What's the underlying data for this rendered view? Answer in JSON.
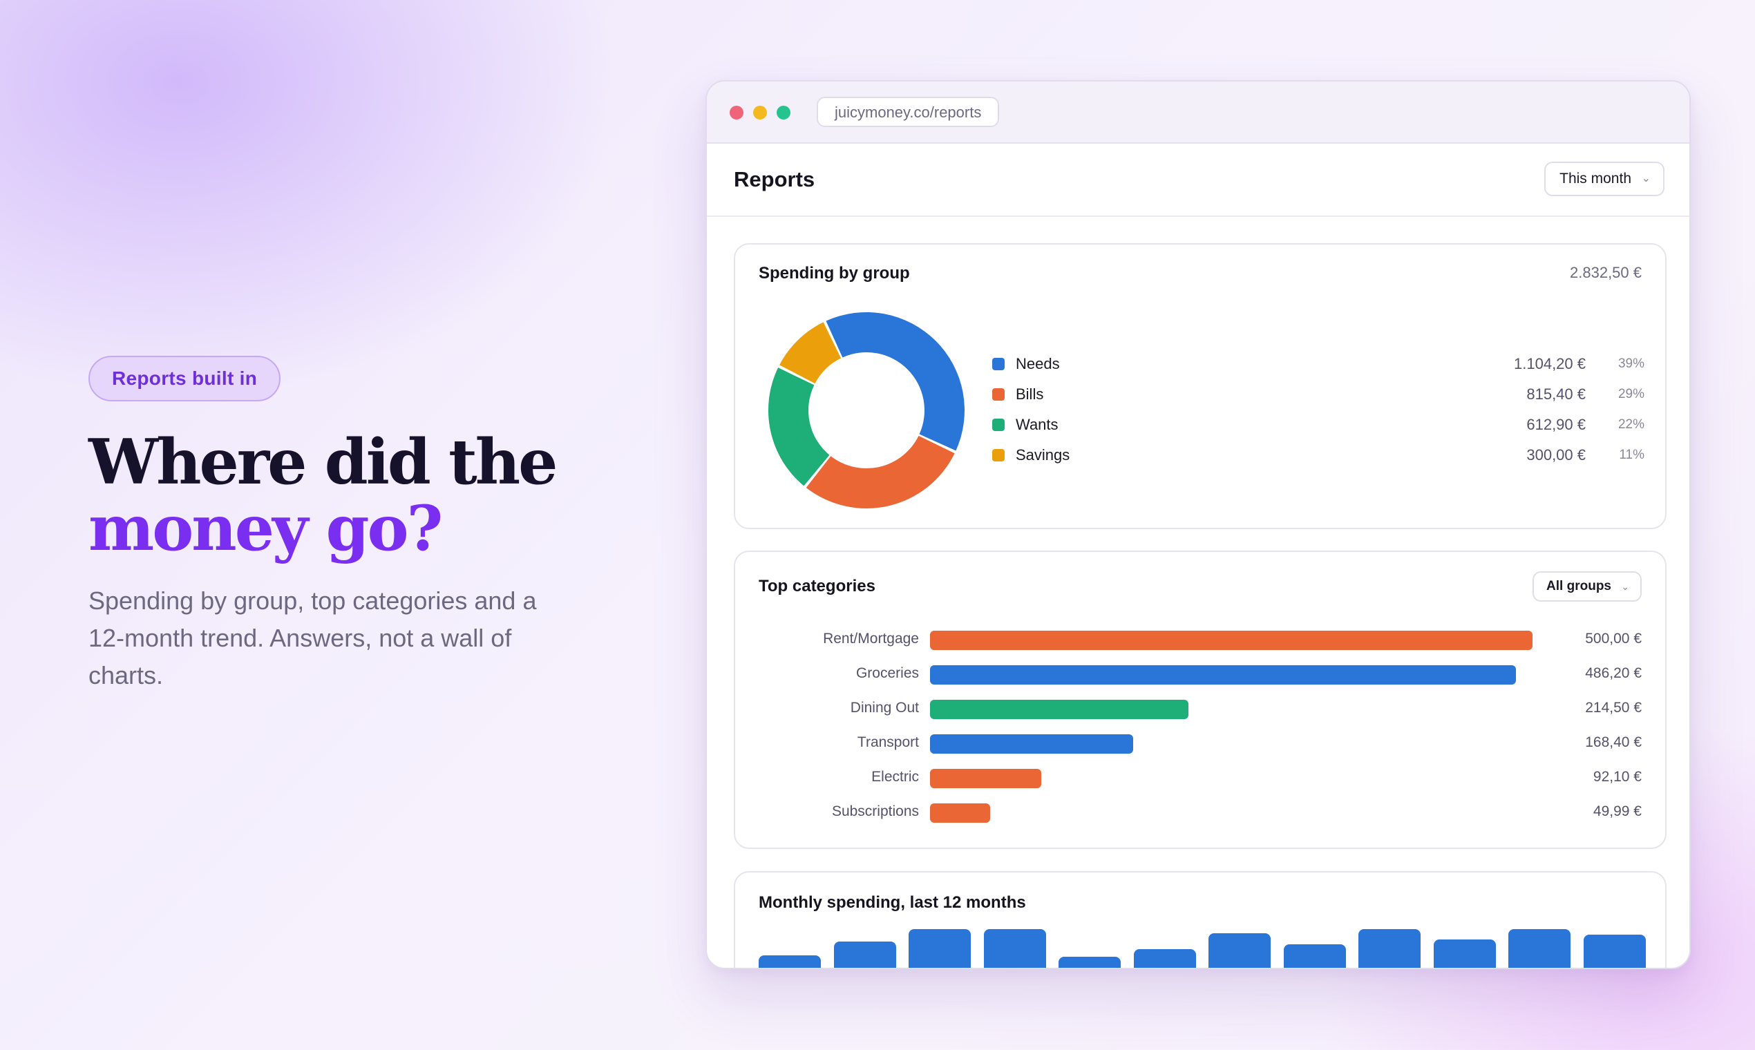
{
  "hero": {
    "badge": "Reports built in",
    "headline_line1": "Where did the",
    "headline_line2": "money go?",
    "subtext": "Spending by group, top categories and a 12-month trend. Answers, not a wall of charts."
  },
  "browser": {
    "url": "juicymoney.co/reports"
  },
  "app": {
    "title": "Reports",
    "period_select": "This month"
  },
  "spending_by_group": {
    "title": "Spending by group",
    "total": "2.832,50 €",
    "items": [
      {
        "name": "Needs",
        "amount": "1.104,20 €",
        "percent": "39%",
        "value": 1104.2,
        "color": "#2a76d8"
      },
      {
        "name": "Bills",
        "amount": "815,40 €",
        "percent": "29%",
        "value": 815.4,
        "color": "#ea6635"
      },
      {
        "name": "Wants",
        "amount": "612,90 €",
        "percent": "22%",
        "value": 612.9,
        "color": "#1eae78"
      },
      {
        "name": "Savings",
        "amount": "300,00 €",
        "percent": "11%",
        "value": 300.0,
        "color": "#ea9f0b"
      }
    ]
  },
  "top_categories": {
    "title": "Top categories",
    "filter": "All groups",
    "max": 500,
    "items": [
      {
        "name": "Rent/Mortgage",
        "amount": "500,00 €",
        "value": 500.0,
        "color": "#ea6635"
      },
      {
        "name": "Groceries",
        "amount": "486,20 €",
        "value": 486.2,
        "color": "#2a76d8"
      },
      {
        "name": "Dining Out",
        "amount": "214,50 €",
        "value": 214.5,
        "color": "#1eae78"
      },
      {
        "name": "Transport",
        "amount": "168,40 €",
        "value": 168.4,
        "color": "#2a76d8"
      },
      {
        "name": "Electric",
        "amount": "92,10 €",
        "value": 92.1,
        "color": "#ea6635"
      },
      {
        "name": "Subscriptions",
        "amount": "49,99 €",
        "value": 49.99,
        "color": "#ea6635"
      }
    ]
  },
  "monthly_spending": {
    "title": "Monthly spending, last 12 months",
    "color": "#2a76d8",
    "relative_values": [
      0.34,
      0.69,
      1.0,
      1.0,
      0.31,
      0.5,
      0.9,
      0.62,
      1.0,
      0.74,
      1.0,
      0.86
    ]
  },
  "chart_data": [
    {
      "type": "pie",
      "title": "Spending by group",
      "categories": [
        "Needs",
        "Bills",
        "Wants",
        "Savings"
      ],
      "values": [
        1104.2,
        815.4,
        612.9,
        300.0
      ]
    },
    {
      "type": "bar",
      "title": "Top categories",
      "categories": [
        "Rent/Mortgage",
        "Groceries",
        "Dining Out",
        "Transport",
        "Electric",
        "Subscriptions"
      ],
      "values": [
        500.0,
        486.2,
        214.5,
        168.4,
        92.1,
        49.99
      ]
    },
    {
      "type": "bar",
      "title": "Monthly spending, last 12 months",
      "values": [
        0.34,
        0.69,
        1.0,
        1.0,
        0.31,
        0.5,
        0.9,
        0.62,
        1.0,
        0.74,
        1.0,
        0.86
      ]
    }
  ]
}
